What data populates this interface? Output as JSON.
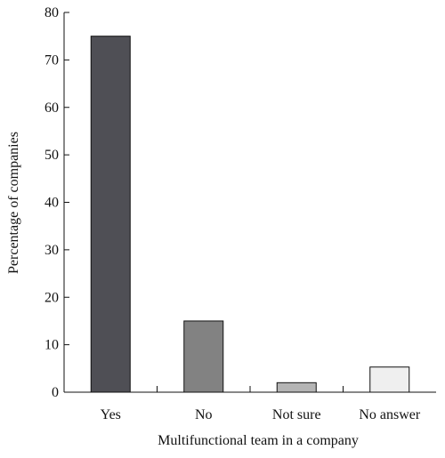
{
  "chart_data": {
    "type": "bar",
    "title": "",
    "xlabel": "Multifunctional team in a company",
    "ylabel": "Percentage of companies",
    "categories": [
      "Yes",
      "No",
      "Not sure",
      "No answer"
    ],
    "values": [
      75,
      15,
      2,
      5.3
    ],
    "bar_colors": [
      "#4f4f55",
      "#828282",
      "#b4b4b4",
      "#efefef"
    ],
    "ylim": [
      0,
      80
    ],
    "yticks": [
      "0",
      "10",
      "20",
      "30",
      "40",
      "50",
      "60",
      "70",
      "80"
    ],
    "grid": false,
    "legend": "none"
  }
}
